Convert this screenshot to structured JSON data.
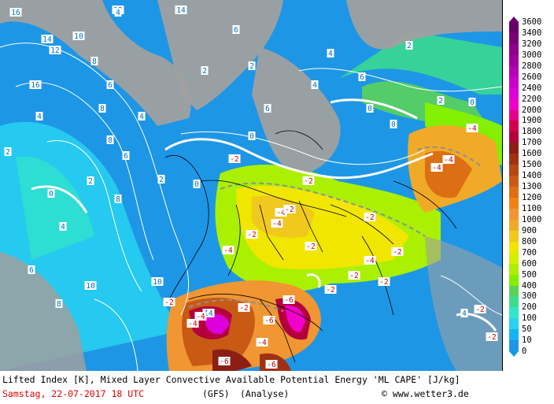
{
  "map": {
    "parameters": [
      "Lifted Index [K]",
      "Mixed Layer Convective Available Potential Energy 'ML CAPE' [J/kg]"
    ],
    "colors": {
      "land_mask": "#a0a0a0",
      "li_isolines": "#ffffff",
      "zero_line": "#ffffff",
      "unstable_line": "#909090",
      "borders": "#000000"
    },
    "li_labels_stable": [
      "16",
      "14",
      "12",
      "10",
      "8",
      "6",
      "4",
      "2",
      "0",
      "0",
      "0",
      "0",
      "2",
      "4",
      "6",
      "8",
      "10",
      "12",
      "14",
      "4",
      "8",
      "6",
      "2",
      "2",
      "6",
      "8",
      "10",
      "14",
      "16",
      "4",
      "6",
      "2",
      "4",
      "8",
      "6",
      "4",
      "2",
      "0",
      "0",
      "2",
      "4"
    ],
    "li_labels_unstable": [
      "-2",
      "-2",
      "-4",
      "-4",
      "-2",
      "-2",
      "-4",
      "-2",
      "-2",
      "-2",
      "-4",
      "-6",
      "-4",
      "-2",
      "-6",
      "-6",
      "-4",
      "-2",
      "-4",
      "-6",
      "-2",
      "-2",
      "-4",
      "-4",
      "-2",
      "-2",
      "-2",
      "-4"
    ]
  },
  "scale": {
    "title": "ML CAPE [J/kg]",
    "labels": [
      "3600",
      "3400",
      "3200",
      "3000",
      "2800",
      "2600",
      "2400",
      "2200",
      "2000",
      "1900",
      "1800",
      "1700",
      "1600",
      "1500",
      "1400",
      "1300",
      "1200",
      "1100",
      "1000",
      "900",
      "800",
      "700",
      "600",
      "500",
      "400",
      "300",
      "200",
      "100",
      "50",
      "10",
      "0"
    ],
    "colors": [
      "#6a006a",
      "#7a007a",
      "#8c008c",
      "#a000a0",
      "#b400b4",
      "#c800c8",
      "#dc00dc",
      "#f000c8",
      "#e6008c",
      "#d20050",
      "#b4003c",
      "#8c1e14",
      "#a03214",
      "#b44614",
      "#c85a14",
      "#dc6e14",
      "#f08214",
      "#f09632",
      "#f0aa28",
      "#f0c81e",
      "#f0e600",
      "#d2f000",
      "#aaf000",
      "#82f000",
      "#5ad25a",
      "#3cdc8c",
      "#32e6c8",
      "#28d2f0",
      "#14b4f0",
      "#1e96e6"
    ]
  },
  "caption": {
    "line1": "Lifted Index [K], Mixed Layer Convective Available Potential Energy 'ML CAPE' [J/kg]",
    "date": "Samstag, 22-07-2017  18 UTC",
    "model": "(GFS)",
    "run": "(Analyse)",
    "copyright": "© www.wetter3.de"
  }
}
